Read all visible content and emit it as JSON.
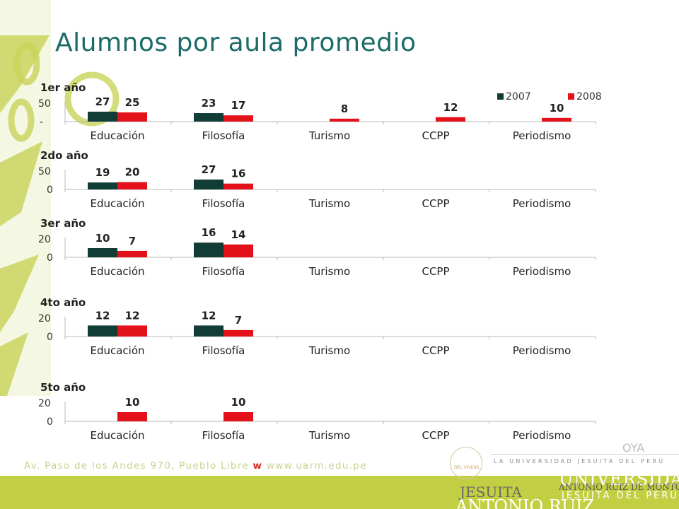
{
  "title": "Alumnos por aula promedio",
  "colors": {
    "series_2007": "#123c36",
    "series_2008": "#e2111a",
    "title": "#1b6b68",
    "deco_green": "#c3cf43",
    "axis": "#b8b8b8"
  },
  "footer": {
    "address_before": "Av. Paso de los Andes 970, Pueblo Libre ",
    "address_w": "w",
    "address_after": " www.uarm.edu.pe"
  },
  "logo": {
    "seal_text": "DEL VIVENS",
    "text_top_right": "OYA",
    "tagline": "LA UNIVERSIDAD JESUITA DEL PERÚ",
    "line_jesuita": "JESUITA",
    "line_universidad": "UNIVERSIDAD",
    "line_arm_small": "ANTONIO RUIZ DE MONTOYA",
    "line_antonio": "ANTONIO RUIZ",
    "line_jdp": "JESUITA DEL PERÚ",
    "line_montoya": "MONTOYA",
    "line_universidad2": "UNIVERSIDAD"
  },
  "chart_data": {
    "type": "bar",
    "categories": [
      "Educación",
      "Filosofía",
      "Turismo",
      "CCPP",
      "Periodismo"
    ],
    "legend": {
      "position": "top-right",
      "entries": [
        "2007",
        "2008"
      ]
    },
    "panels": [
      {
        "label": "1er año",
        "y_tick_labels": [
          "50",
          "-"
        ],
        "ylim": [
          0,
          50
        ],
        "series": [
          {
            "name": "2007",
            "values": [
              27,
              23,
              null,
              null,
              null
            ]
          },
          {
            "name": "2008",
            "values": [
              25,
              17,
              8,
              12,
              10
            ]
          }
        ]
      },
      {
        "label": "2do año",
        "y_tick_labels": [
          "50",
          "0"
        ],
        "ylim": [
          0,
          50
        ],
        "series": [
          {
            "name": "2007",
            "values": [
              19,
              27,
              null,
              null,
              null
            ]
          },
          {
            "name": "2008",
            "values": [
              20,
              16,
              null,
              null,
              null
            ]
          }
        ]
      },
      {
        "label": "3er año",
        "y_tick_labels": [
          "20",
          "0"
        ],
        "ylim": [
          0,
          20
        ],
        "series": [
          {
            "name": "2007",
            "values": [
              10,
              16,
              null,
              null,
              null
            ]
          },
          {
            "name": "2008",
            "values": [
              7,
              14,
              null,
              null,
              null
            ]
          }
        ]
      },
      {
        "label": "4to año",
        "y_tick_labels": [
          "20",
          "0"
        ],
        "ylim": [
          0,
          20
        ],
        "series": [
          {
            "name": "2007",
            "values": [
              12,
              12,
              null,
              null,
              null
            ]
          },
          {
            "name": "2008",
            "values": [
              12,
              7,
              null,
              null,
              null
            ]
          }
        ]
      },
      {
        "label": "5to año",
        "y_tick_labels": [
          "20",
          "0"
        ],
        "ylim": [
          0,
          20
        ],
        "series": [
          {
            "name": "2007",
            "values": [
              null,
              null,
              null,
              null,
              null
            ]
          },
          {
            "name": "2008",
            "values": [
              10,
              10,
              null,
              null,
              null
            ]
          }
        ]
      }
    ]
  }
}
